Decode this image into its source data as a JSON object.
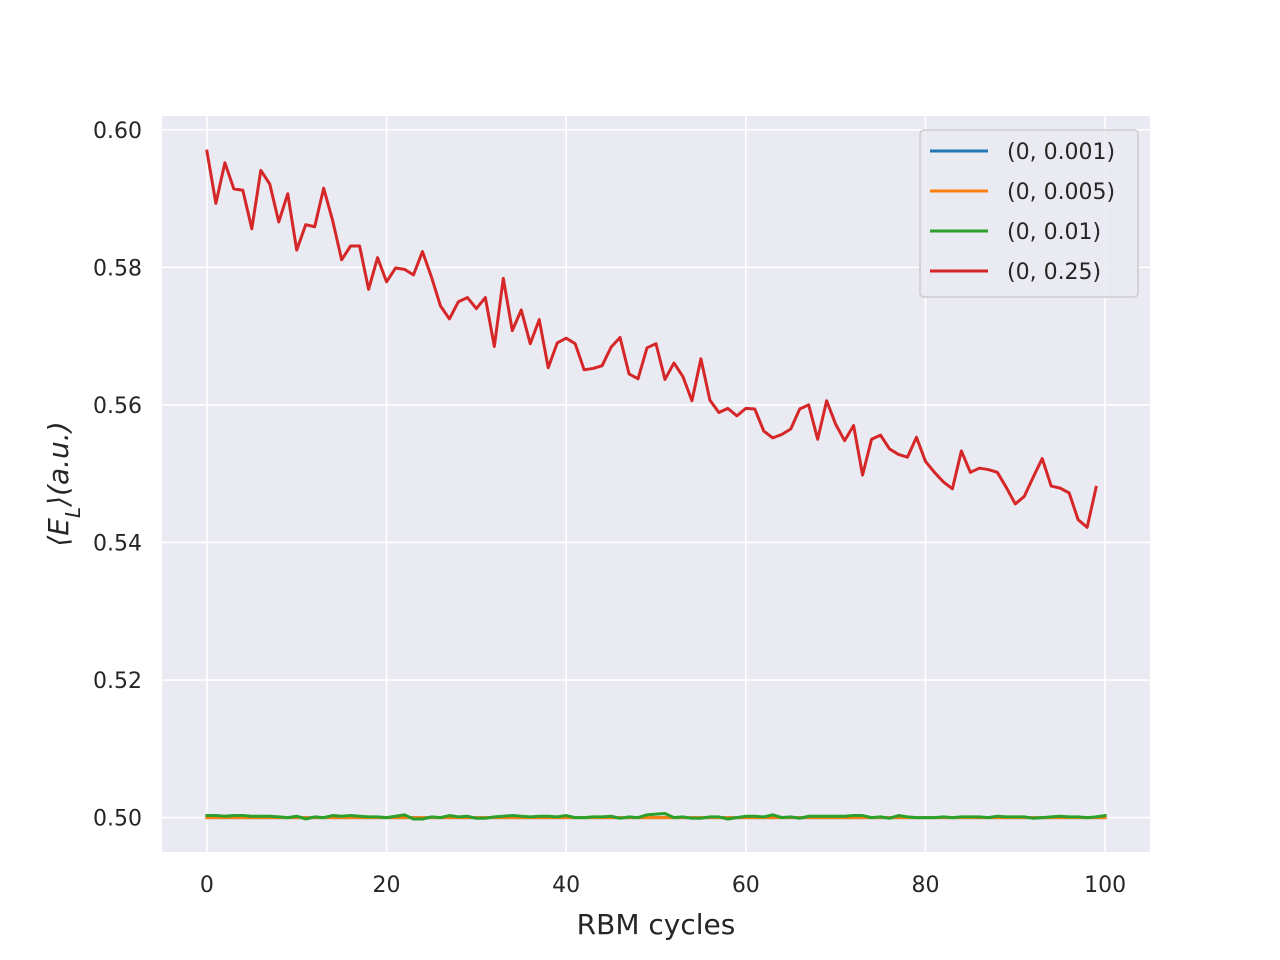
{
  "chart_data": {
    "type": "line",
    "xlabel": "RBM cycles",
    "ylabel": "⟨E_L⟩(a.u.)",
    "xlim": [
      -5,
      105
    ],
    "ylim": [
      0.495,
      0.602
    ],
    "xticks": [
      0,
      20,
      40,
      60,
      80,
      100
    ],
    "xtick_labels": [
      "0",
      "20",
      "40",
      "60",
      "80",
      "100"
    ],
    "yticks": [
      0.5,
      0.52,
      0.54,
      0.56,
      0.58,
      0.6
    ],
    "ytick_labels": [
      "0.50",
      "0.52",
      "0.54",
      "0.56",
      "0.58",
      "0.60"
    ],
    "grid": true,
    "legend_position": "top-right",
    "background": "#eaeaf2",
    "series": [
      {
        "name": "(0, 0.001)",
        "color": "#1f77b4",
        "x_start": 0,
        "x_step": 1,
        "values": [
          0.5,
          0.5,
          0.5,
          0.5,
          0.5,
          0.5,
          0.5,
          0.5,
          0.5,
          0.5,
          0.5,
          0.5,
          0.5,
          0.5,
          0.5,
          0.5,
          0.5,
          0.5,
          0.5,
          0.5,
          0.5,
          0.5,
          0.5,
          0.5,
          0.5,
          0.5,
          0.5,
          0.5,
          0.5,
          0.5,
          0.5,
          0.5,
          0.5,
          0.5,
          0.5,
          0.5,
          0.5,
          0.5,
          0.5,
          0.5,
          0.5,
          0.5,
          0.5,
          0.5,
          0.5,
          0.5,
          0.5,
          0.5,
          0.5,
          0.5,
          0.5,
          0.5,
          0.5,
          0.5,
          0.5,
          0.5,
          0.5,
          0.5,
          0.5,
          0.5,
          0.5,
          0.5,
          0.5,
          0.5,
          0.5,
          0.5,
          0.5,
          0.5,
          0.5,
          0.5,
          0.5,
          0.5,
          0.5,
          0.5,
          0.5,
          0.5,
          0.5,
          0.5,
          0.5,
          0.5,
          0.5,
          0.5,
          0.5,
          0.5,
          0.5,
          0.5,
          0.5,
          0.5,
          0.5,
          0.5,
          0.5,
          0.5,
          0.5,
          0.5,
          0.5,
          0.5,
          0.5,
          0.5,
          0.5,
          0.5,
          0.5
        ]
      },
      {
        "name": "(0, 0.005)",
        "color": "#ff7f0e",
        "x_start": 0,
        "x_step": 1,
        "values": [
          0.5,
          0.5,
          0.5,
          0.5,
          0.5,
          0.5,
          0.5,
          0.5,
          0.5,
          0.5,
          0.5,
          0.5,
          0.5,
          0.5,
          0.5,
          0.5,
          0.5,
          0.5,
          0.5,
          0.5,
          0.5,
          0.5,
          0.5,
          0.5,
          0.5,
          0.5,
          0.5,
          0.5,
          0.5,
          0.5,
          0.5,
          0.5,
          0.5,
          0.5,
          0.5,
          0.5,
          0.5,
          0.5,
          0.5,
          0.5,
          0.5,
          0.5,
          0.5,
          0.5,
          0.5,
          0.5,
          0.5,
          0.5,
          0.5,
          0.5,
          0.5,
          0.5,
          0.5,
          0.5,
          0.5,
          0.5,
          0.5,
          0.5,
          0.5,
          0.5,
          0.5,
          0.5,
          0.5,
          0.5,
          0.5,
          0.5,
          0.5,
          0.5,
          0.5,
          0.5,
          0.5,
          0.5,
          0.5,
          0.5,
          0.5,
          0.5,
          0.5,
          0.5,
          0.5,
          0.5,
          0.5,
          0.5,
          0.5,
          0.5,
          0.5,
          0.5,
          0.5,
          0.5,
          0.5,
          0.5,
          0.5,
          0.5,
          0.5,
          0.5,
          0.5,
          0.5,
          0.5,
          0.5,
          0.5,
          0.5,
          0.5
        ]
      },
      {
        "name": "(0, 0.01)",
        "color": "#2ca02c",
        "x_start": 0,
        "x_step": 1,
        "values": [
          0.5003,
          0.5003,
          0.5002,
          0.5003,
          0.5003,
          0.5002,
          0.5002,
          0.5002,
          0.5001,
          0.5,
          0.5002,
          0.4998,
          0.5001,
          0.5,
          0.5003,
          0.5002,
          0.5003,
          0.5002,
          0.5001,
          0.5001,
          0.5,
          0.5002,
          0.5004,
          0.4998,
          0.4998,
          0.5001,
          0.5,
          0.5003,
          0.5001,
          0.5002,
          0.4999,
          0.4999,
          0.5001,
          0.5002,
          0.5003,
          0.5002,
          0.5001,
          0.5002,
          0.5002,
          0.5001,
          0.5003,
          0.5,
          0.5,
          0.5001,
          0.5001,
          0.5002,
          0.4999,
          0.5001,
          0.5,
          0.5004,
          0.5005,
          0.5006,
          0.5,
          0.5001,
          0.4999,
          0.4999,
          0.5001,
          0.5001,
          0.4998,
          0.5,
          0.5002,
          0.5002,
          0.5001,
          0.5004,
          0.5,
          0.5001,
          0.4999,
          0.5002,
          0.5002,
          0.5002,
          0.5002,
          0.5002,
          0.5003,
          0.5003,
          0.5,
          0.5001,
          0.4999,
          0.5003,
          0.5001,
          0.5,
          0.5,
          0.5,
          0.5001,
          0.5,
          0.5001,
          0.5001,
          0.5001,
          0.5,
          0.5002,
          0.5001,
          0.5001,
          0.5001,
          0.4999,
          0.5,
          0.5001,
          0.5002,
          0.5001,
          0.5001,
          0.5,
          0.5001,
          0.5003
        ]
      },
      {
        "name": "(0, 0.25)",
        "color": "#d62728",
        "x_start": 0,
        "x_step": 1,
        "values": [
          0.5969,
          0.5893,
          0.5952,
          0.5914,
          0.5912,
          0.5856,
          0.5941,
          0.5921,
          0.5866,
          0.5907,
          0.5825,
          0.5862,
          0.5859,
          0.5915,
          0.5868,
          0.5811,
          0.5831,
          0.5831,
          0.5768,
          0.5814,
          0.5779,
          0.5799,
          0.5797,
          0.5789,
          0.5823,
          0.5786,
          0.5744,
          0.5725,
          0.575,
          0.5756,
          0.574,
          0.5756,
          0.5685,
          0.5784,
          0.5708,
          0.5738,
          0.5689,
          0.5724,
          0.5654,
          0.569,
          0.5697,
          0.5689,
          0.5651,
          0.5653,
          0.5657,
          0.5684,
          0.5698,
          0.5645,
          0.5638,
          0.5683,
          0.5689,
          0.5637,
          0.5661,
          0.5641,
          0.5606,
          0.5667,
          0.5607,
          0.5589,
          0.5595,
          0.5584,
          0.5595,
          0.5594,
          0.5562,
          0.5552,
          0.5557,
          0.5565,
          0.5594,
          0.56,
          0.555,
          0.5606,
          0.5572,
          0.5548,
          0.557,
          0.5498,
          0.555,
          0.5556,
          0.5536,
          0.5528,
          0.5524,
          0.5553,
          0.5518,
          0.5502,
          0.5488,
          0.5478,
          0.5533,
          0.5502,
          0.5508,
          0.5506,
          0.5502,
          0.548,
          0.5456,
          0.5467,
          0.5495,
          0.5522,
          0.5482,
          0.5479,
          0.5472,
          0.5433,
          0.5422,
          0.548
        ]
      }
    ]
  }
}
